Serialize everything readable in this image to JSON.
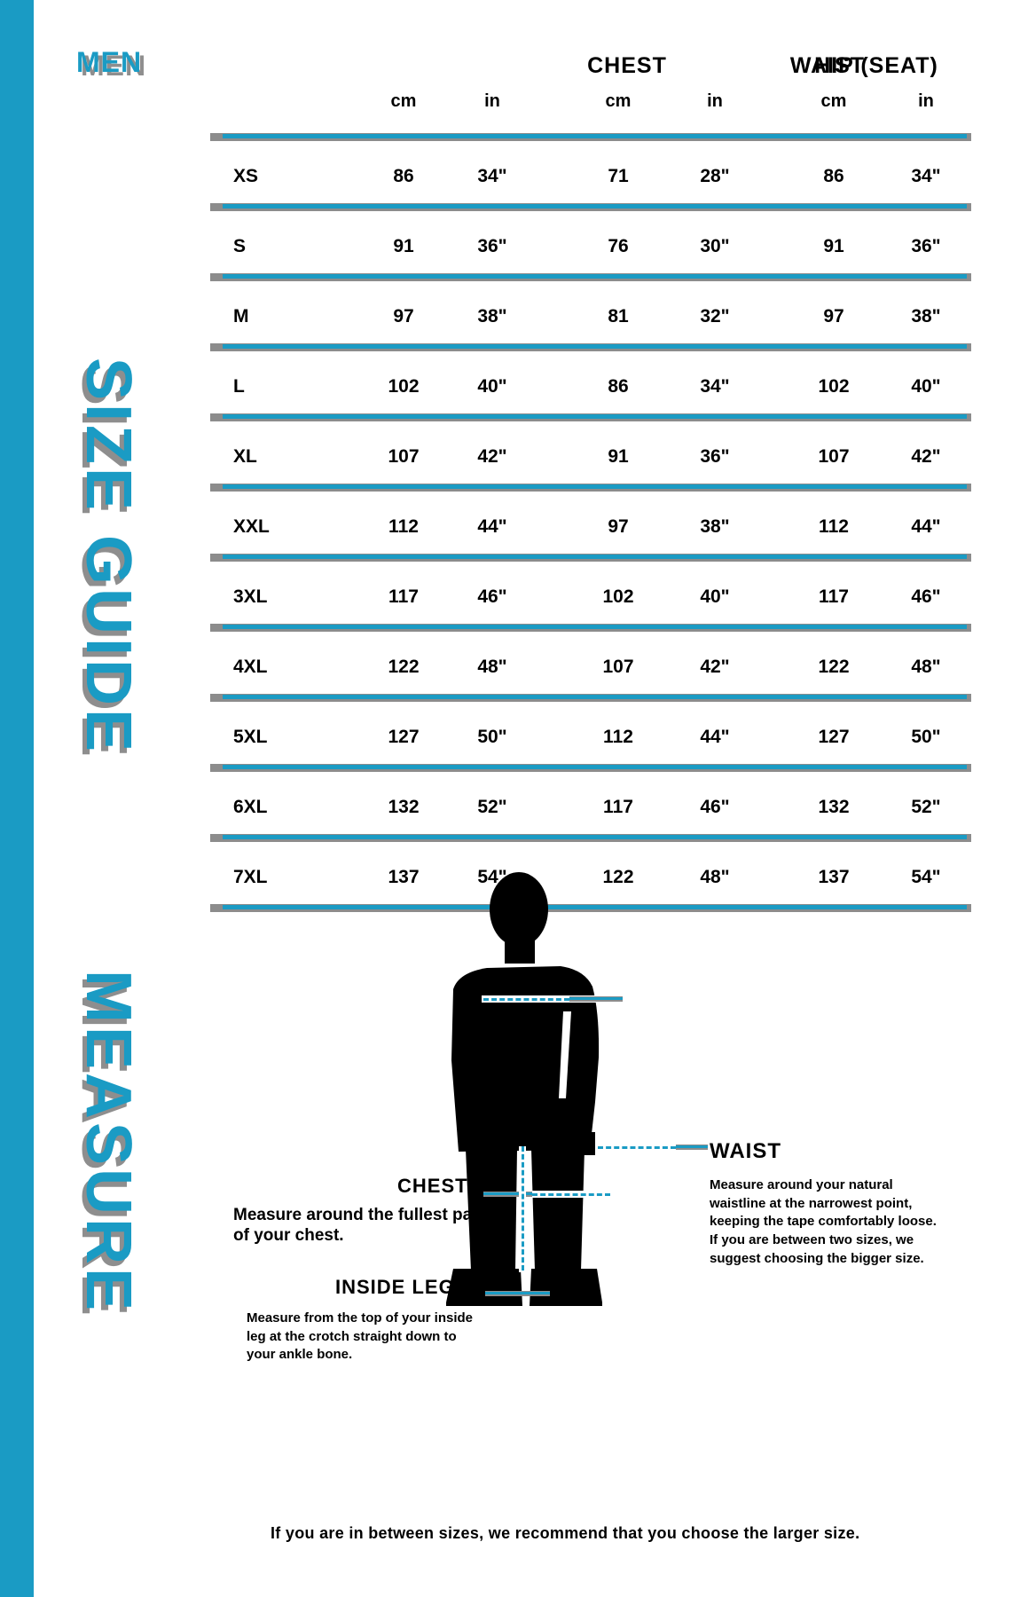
{
  "page": {
    "category_label": "MEN",
    "size_guide_title": "SIZE GUIDE",
    "measure_title": "MEASURE",
    "accent_color": "#1a9bc4",
    "shadow_color": "#8e8e8e"
  },
  "table": {
    "column_groups": [
      {
        "label": "CHEST",
        "units": [
          "cm",
          "in"
        ]
      },
      {
        "label": "WAIST",
        "units": [
          "cm",
          "in"
        ]
      },
      {
        "label": "HIP (SEAT)",
        "units": [
          "cm",
          "in"
        ]
      }
    ],
    "size_column_rows": [
      "XS",
      "S",
      "M",
      "L",
      "XL",
      "XXL",
      "3XL",
      "4XL",
      "5XL",
      "6XL",
      "7XL"
    ],
    "rows": [
      [
        "XS",
        "86",
        "34\"",
        "71",
        "28\"",
        "86",
        "34\""
      ],
      [
        "S",
        "91",
        "36\"",
        "76",
        "30\"",
        "91",
        "36\""
      ],
      [
        "M",
        "97",
        "38\"",
        "81",
        "32\"",
        "97",
        "38\""
      ],
      [
        "L",
        "102",
        "40\"",
        "86",
        "34\"",
        "102",
        "40\""
      ],
      [
        "XL",
        "107",
        "42\"",
        "91",
        "36\"",
        "107",
        "42\""
      ],
      [
        "XXL",
        "112",
        "44\"",
        "97",
        "38\"",
        "112",
        "44\""
      ],
      [
        "3XL",
        "117",
        "46\"",
        "102",
        "40\"",
        "117",
        "46\""
      ],
      [
        "4XL",
        "122",
        "48\"",
        "107",
        "42\"",
        "122",
        "48\""
      ],
      [
        "5XL",
        "127",
        "50\"",
        "112",
        "44\"",
        "127",
        "50\""
      ],
      [
        "6XL",
        "132",
        "52\"",
        "117",
        "46\"",
        "132",
        "52\""
      ],
      [
        "7XL",
        "137",
        "54\"",
        "122",
        "48\"",
        "137",
        "54\""
      ]
    ]
  },
  "measure_section": {
    "chest": {
      "label": "CHEST",
      "text": "Measure around the fullest part of your chest."
    },
    "waist": {
      "label": "WAIST",
      "text": "Measure around your natural waistline at the narrowest point, keeping the tape comfortably loose. If you are between two sizes, we suggest choosing the bigger size."
    },
    "inside_leg": {
      "label": "INSIDE LEG",
      "text": "Measure from the top of your inside leg at the crotch straight down to your ankle bone."
    },
    "footnote": "If you are in between sizes, we recommend that you choose the larger size."
  }
}
